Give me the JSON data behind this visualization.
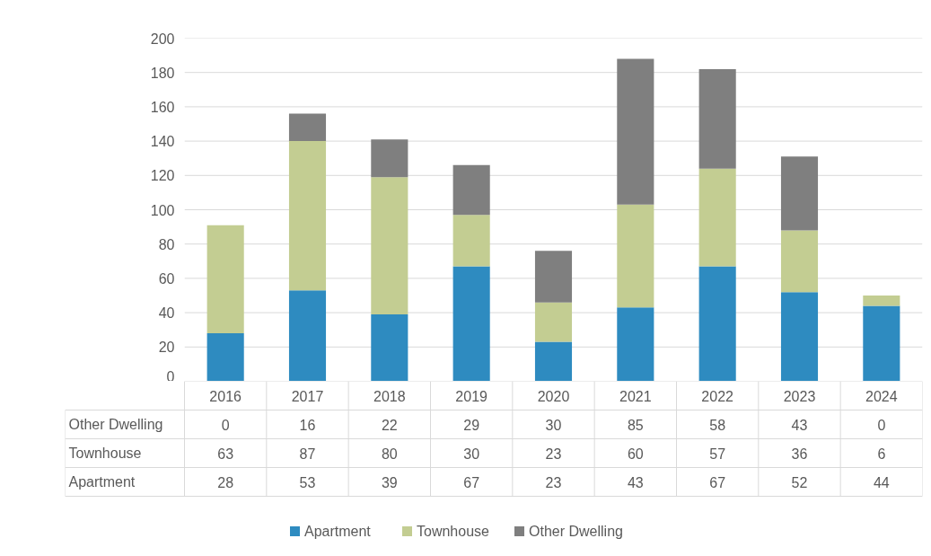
{
  "chart_data": {
    "type": "bar",
    "stacked": true,
    "categories": [
      "2016",
      "2017",
      "2018",
      "2019",
      "2020",
      "2021",
      "2022",
      "2023",
      "2024"
    ],
    "series": [
      {
        "name": "Apartment",
        "color": "#2e8bc0",
        "values": [
          28,
          53,
          39,
          67,
          23,
          43,
          67,
          52,
          44
        ]
      },
      {
        "name": "Townhouse",
        "color": "#c3cd92",
        "values": [
          63,
          87,
          80,
          30,
          23,
          60,
          57,
          36,
          6
        ]
      },
      {
        "name": "Other Dwelling",
        "color": "#7f7f7f",
        "values": [
          0,
          16,
          22,
          29,
          30,
          85,
          58,
          43,
          0
        ]
      }
    ],
    "ylim": [
      0,
      200
    ],
    "yticks": [
      0,
      20,
      40,
      60,
      80,
      100,
      120,
      140,
      160,
      180,
      200
    ],
    "grid": "y",
    "legend": "bottom",
    "data_labels": true
  }
}
